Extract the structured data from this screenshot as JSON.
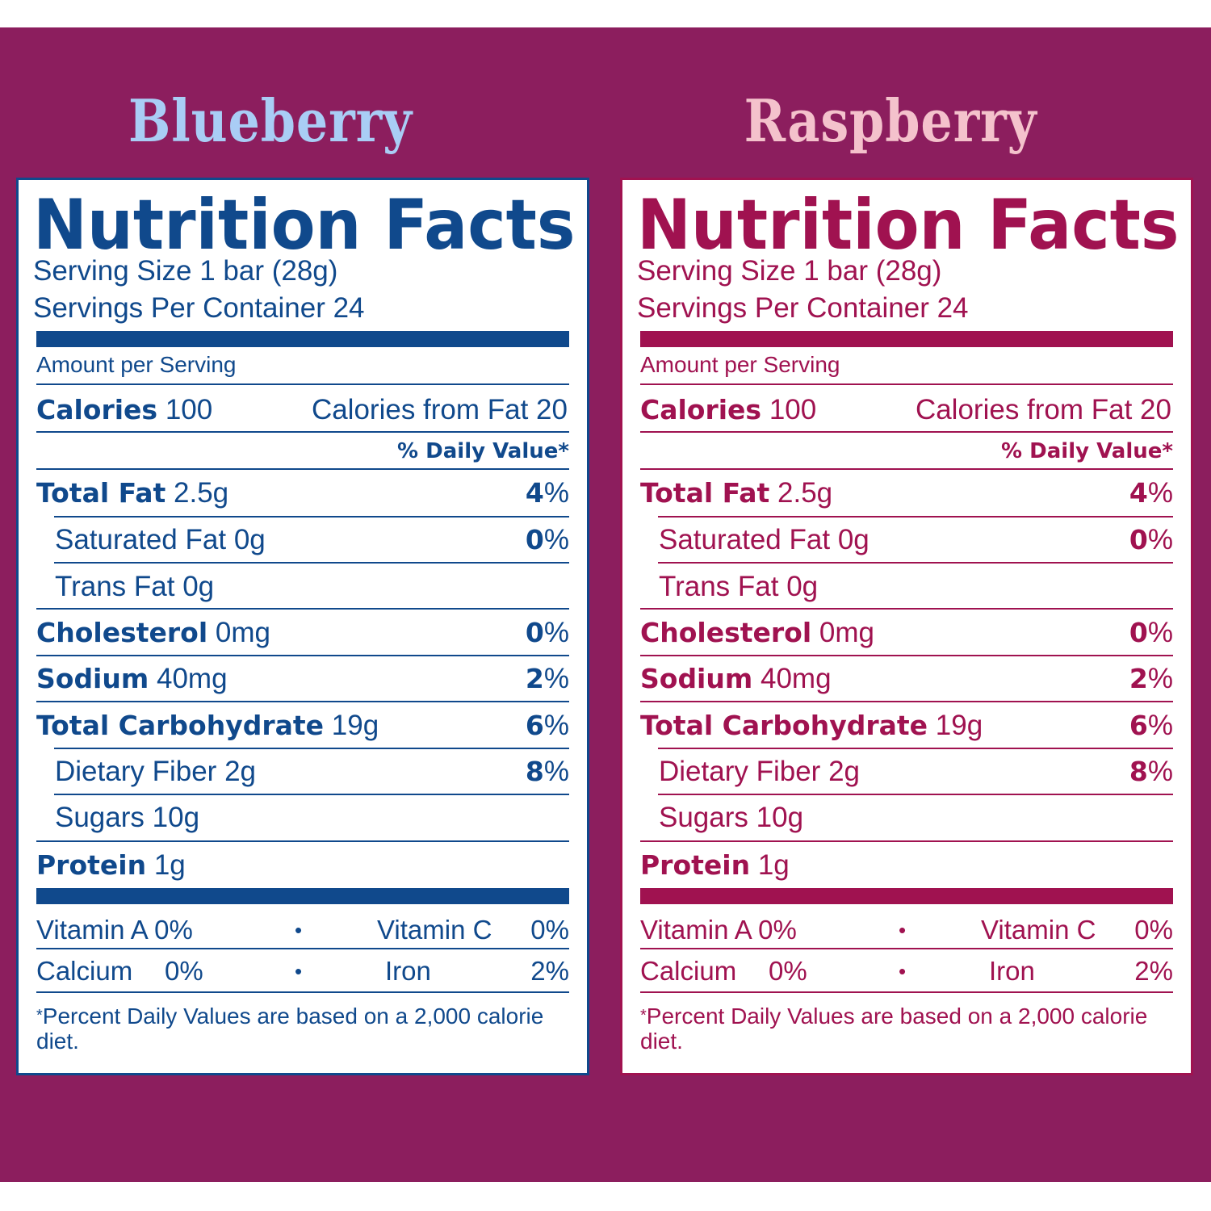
{
  "colors": {
    "background": "#8c1e5e",
    "blueberry_text": "#10498c",
    "raspberry_text": "#a01250",
    "blueberry_heading": "#a9cdf5",
    "raspberry_heading": "#f4c2cc"
  },
  "panels": [
    {
      "flavor": "Blueberry",
      "title": "Nutrition Facts",
      "serving_size": "Serving Size 1 bar (28g)",
      "servings_per_container": "Servings Per Container 24",
      "amount_per_serving": "Amount per Serving",
      "calories_label": "Calories",
      "calories_value": "100",
      "calories_from_fat": "Calories from Fat 20",
      "daily_value_header": "% Daily Value*",
      "nutrients": [
        {
          "name": "Total Fat",
          "amount": "2.5g",
          "pct_num": "4",
          "pct_sign": "%",
          "bold": true,
          "indent": false
        },
        {
          "name": "Saturated Fat",
          "amount": "0g",
          "pct_num": "0",
          "pct_sign": "%",
          "bold": false,
          "indent": true
        },
        {
          "name": "Trans Fat",
          "amount": "0g",
          "pct_num": "",
          "pct_sign": "",
          "bold": false,
          "indent": true
        },
        {
          "name": "Cholesterol",
          "amount": "0mg",
          "pct_num": "0",
          "pct_sign": "%",
          "bold": true,
          "indent": false
        },
        {
          "name": "Sodium",
          "amount": "40mg",
          "pct_num": "2",
          "pct_sign": "%",
          "bold": true,
          "indent": false
        },
        {
          "name": "Total Carbohydrate",
          "amount": "19g",
          "pct_num": "6",
          "pct_sign": "%",
          "bold": true,
          "indent": false
        },
        {
          "name": "Dietary Fiber",
          "amount": "2g",
          "pct_num": "8",
          "pct_sign": "%",
          "bold": false,
          "indent": true
        },
        {
          "name": "Sugars",
          "amount": "10g",
          "pct_num": "",
          "pct_sign": "",
          "bold": false,
          "indent": true
        },
        {
          "name": "Protein",
          "amount": "1g",
          "pct_num": "",
          "pct_sign": "",
          "bold": true,
          "indent": false
        }
      ],
      "vitamins": [
        {
          "left_label": "Vitamin A",
          "left_value": "0%",
          "right_label": "Vitamin C",
          "right_value": "0%"
        },
        {
          "left_label": "Calcium",
          "left_value": "0%",
          "right_label": "Iron",
          "right_value": "2%"
        }
      ],
      "bullet": "•",
      "footnote_mark": "*",
      "footnote": "Percent Daily Values are based on a 2,000 calorie diet."
    },
    {
      "flavor": "Raspberry",
      "title": "Nutrition Facts",
      "serving_size": "Serving Size 1 bar (28g)",
      "servings_per_container": "Servings Per Container 24",
      "amount_per_serving": "Amount per Serving",
      "calories_label": "Calories",
      "calories_value": "100",
      "calories_from_fat": "Calories from Fat 20",
      "daily_value_header": "% Daily Value*",
      "nutrients": [
        {
          "name": "Total Fat",
          "amount": "2.5g",
          "pct_num": "4",
          "pct_sign": "%",
          "bold": true,
          "indent": false
        },
        {
          "name": "Saturated Fat",
          "amount": "0g",
          "pct_num": "0",
          "pct_sign": "%",
          "bold": false,
          "indent": true
        },
        {
          "name": "Trans Fat",
          "amount": "0g",
          "pct_num": "",
          "pct_sign": "",
          "bold": false,
          "indent": true
        },
        {
          "name": "Cholesterol",
          "amount": "0mg",
          "pct_num": "0",
          "pct_sign": "%",
          "bold": true,
          "indent": false
        },
        {
          "name": "Sodium",
          "amount": "40mg",
          "pct_num": "2",
          "pct_sign": "%",
          "bold": true,
          "indent": false
        },
        {
          "name": "Total Carbohydrate",
          "amount": "19g",
          "pct_num": "6",
          "pct_sign": "%",
          "bold": true,
          "indent": false
        },
        {
          "name": "Dietary Fiber",
          "amount": "2g",
          "pct_num": "8",
          "pct_sign": "%",
          "bold": false,
          "indent": true
        },
        {
          "name": "Sugars",
          "amount": "10g",
          "pct_num": "",
          "pct_sign": "",
          "bold": false,
          "indent": true
        },
        {
          "name": "Protein",
          "amount": "1g",
          "pct_num": "",
          "pct_sign": "",
          "bold": true,
          "indent": false
        }
      ],
      "vitamins": [
        {
          "left_label": "Vitamin A",
          "left_value": "0%",
          "right_label": "Vitamin C",
          "right_value": "0%"
        },
        {
          "left_label": "Calcium",
          "left_value": "0%",
          "right_label": "Iron",
          "right_value": "2%"
        }
      ],
      "bullet": "•",
      "footnote_mark": "*",
      "footnote": "Percent Daily Values are based on a 2,000 calorie diet."
    }
  ]
}
